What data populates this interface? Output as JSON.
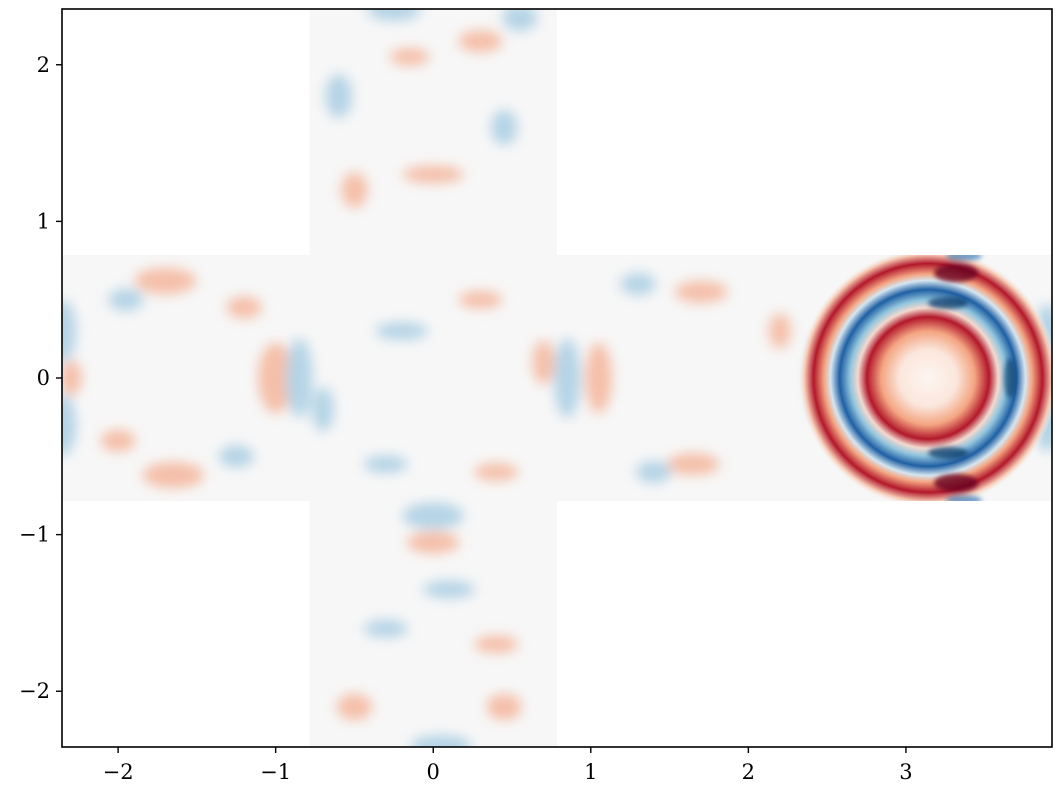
{
  "chart_data": {
    "type": "heatmap",
    "title": "",
    "xlabel": "",
    "ylabel": "",
    "xlim": [
      -2.356,
      3.927
    ],
    "ylim": [
      -2.356,
      2.356
    ],
    "xticks": [
      {
        "value": -2,
        "label": "−2"
      },
      {
        "value": -1,
        "label": "−1"
      },
      {
        "value": 0,
        "label": "0"
      },
      {
        "value": 1,
        "label": "1"
      },
      {
        "value": 2,
        "label": "2"
      },
      {
        "value": 3,
        "label": "3"
      }
    ],
    "yticks": [
      {
        "value": -2,
        "label": "−2"
      },
      {
        "value": -1,
        "label": "−1"
      },
      {
        "value": 0,
        "label": "0"
      },
      {
        "value": 1,
        "label": "1"
      },
      {
        "value": 2,
        "label": "2"
      }
    ],
    "colormap": "RdBu_r (diverging blue–white–red)",
    "colors": {
      "negative": "#053061",
      "zero": "#f7f7f7",
      "positive": "#67001f"
    },
    "domain_regions": [
      {
        "name": "center",
        "x": [
          -0.785,
          0.785
        ],
        "y": [
          -0.785,
          0.785
        ]
      },
      {
        "name": "left-arm",
        "x": [
          -2.356,
          -0.785
        ],
        "y": [
          -0.785,
          0.785
        ]
      },
      {
        "name": "right-arm",
        "x": [
          0.785,
          2.356
        ],
        "y": [
          -0.785,
          0.785
        ]
      },
      {
        "name": "far-right-arm",
        "x": [
          2.356,
          3.927
        ],
        "y": [
          -0.785,
          0.785
        ]
      },
      {
        "name": "top-arm",
        "x": [
          -0.785,
          0.785
        ],
        "y": [
          0.785,
          2.356
        ]
      },
      {
        "name": "bottom-arm",
        "x": [
          -0.785,
          0.785
        ],
        "y": [
          -2.356,
          -0.785
        ]
      }
    ],
    "features": [
      {
        "description": "concentric ring wave pattern",
        "center": [
          3.14,
          0.0
        ],
        "ring_radii": [
          0.36,
          0.56,
          0.72
        ],
        "ring_signs": [
          "positive",
          "negative",
          "positive"
        ],
        "amplitude": "high"
      },
      {
        "description": "faint scattered interference pattern",
        "region": "rest of cross domain",
        "amplitude": "low"
      }
    ]
  }
}
